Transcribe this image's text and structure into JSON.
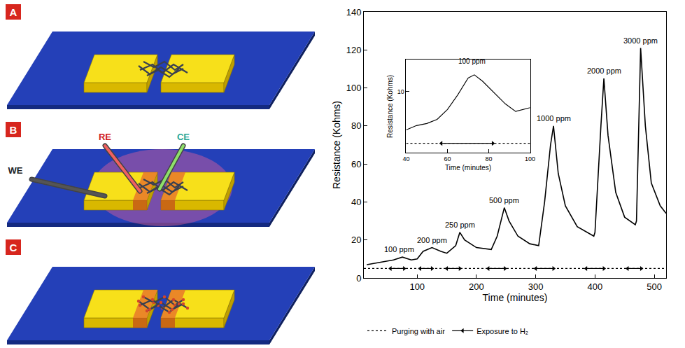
{
  "diagram": {
    "panels": [
      {
        "label": "A"
      },
      {
        "label": "B",
        "electrodes": [
          "WE",
          "RE",
          "CE"
        ]
      },
      {
        "label": "C"
      }
    ]
  },
  "chart_data": [
    {
      "type": "line",
      "xlabel": "Time (minutes)",
      "ylabel": "Resistance (Kohms)",
      "color": "#000000",
      "x": [
        15,
        40,
        60,
        75,
        90,
        100,
        110,
        125,
        140,
        150,
        165,
        172,
        180,
        200,
        225,
        235,
        247,
        255,
        270,
        290,
        305,
        315,
        325,
        330,
        338,
        350,
        370,
        398,
        400,
        410,
        415,
        422,
        435,
        450,
        468,
        470,
        477,
        485,
        495,
        510,
        520
      ],
      "values": [
        7,
        8.5,
        9.5,
        11,
        9.5,
        10,
        14,
        16,
        14,
        13,
        17,
        24,
        20,
        16,
        15,
        22,
        37,
        30,
        22,
        18,
        17,
        40,
        70,
        80,
        55,
        38,
        27,
        22,
        24,
        80,
        105,
        75,
        45,
        32,
        28,
        30,
        121,
        80,
        50,
        38,
        34
      ],
      "xlim": [
        10,
        520
      ],
      "xticks": [
        100,
        200,
        300,
        400,
        500
      ],
      "ylim": [
        0,
        140
      ],
      "yticks": [
        0,
        20,
        40,
        60,
        80,
        100,
        120,
        140
      ],
      "grid": false,
      "legend": "bottom",
      "series": [
        {
          "name": "Purging with air",
          "line_style": "dotted",
          "color": "#000000",
          "x": [
            10,
            520
          ],
          "values": [
            5,
            5
          ]
        },
        {
          "name": "Exposure to H₂",
          "line_style": "arrow",
          "color": "#000000",
          "level": 5,
          "intervals": [
            [
              55,
              78
            ],
            [
              105,
              125
            ],
            [
              150,
              172
            ],
            [
              220,
              248
            ],
            [
              300,
              330
            ],
            [
              385,
              415
            ],
            [
              455,
              478
            ]
          ]
        }
      ],
      "annotations": [
        {
          "text": "100 ppm",
          "x": 70,
          "y": 11
        },
        {
          "text": "200 ppm",
          "x": 125,
          "y": 16
        },
        {
          "text": "250 ppm",
          "x": 172,
          "y": 24
        },
        {
          "text": "500 ppm",
          "x": 247,
          "y": 37
        },
        {
          "text": "1000 ppm",
          "x": 330,
          "y": 80
        },
        {
          "text": "2000 ppm",
          "x": 415,
          "y": 105
        },
        {
          "text": "3000 ppm",
          "x": 477,
          "y": 121
        }
      ]
    },
    {
      "type": "line",
      "xlabel": "Time (minutes)",
      "ylabel": "Resistance (Kohms)",
      "color": "#000000",
      "log": "y",
      "x": [
        40,
        45,
        50,
        55,
        60,
        65,
        70,
        73,
        77,
        82,
        88,
        93,
        97,
        100
      ],
      "values": [
        8.0,
        8.2,
        8.3,
        8.5,
        9.0,
        9.8,
        10.8,
        11.0,
        10.6,
        10.0,
        9.3,
        8.9,
        9.0,
        9.1
      ],
      "xlim": [
        40,
        100
      ],
      "xticks": [
        40,
        60,
        80,
        100
      ],
      "ylim": [
        7,
        12
      ],
      "yticks": [
        10
      ],
      "grid": false,
      "series": [
        {
          "line_style": "dotted",
          "color": "#000000",
          "x": [
            40,
            100
          ],
          "values": [
            7.4,
            7.4
          ]
        },
        {
          "line_style": "arrow",
          "color": "#000000",
          "level": 7.4,
          "intervals": [
            [
              57,
              82
            ]
          ]
        }
      ],
      "annotations": [
        {
          "text": "100 ppm",
          "x": 72,
          "y": 11.4
        }
      ]
    }
  ]
}
